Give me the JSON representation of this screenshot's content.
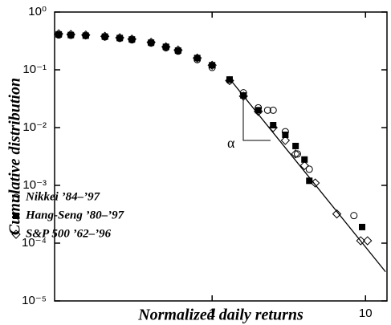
{
  "chart_data": {
    "type": "scatter",
    "log_x": true,
    "log_y": true,
    "xlabel": "Normalized daily returns",
    "ylabel": "Cumulative distribution",
    "xlim": [
      0.094,
      13.8
    ],
    "ylim": [
      1e-05,
      1
    ],
    "xticks": [
      1,
      10
    ],
    "yticks": [
      {
        "value": 1,
        "label": "10⁰"
      },
      {
        "value": 0.1,
        "label": "10⁻¹"
      },
      {
        "value": 0.01,
        "label": "10⁻²"
      },
      {
        "value": 0.001,
        "label": "10⁻³"
      },
      {
        "value": 0.0001,
        "label": "10⁻⁴"
      },
      {
        "value": 1e-05,
        "label": "10⁻⁵"
      }
    ],
    "legend": "lower left",
    "series": [
      {
        "name": "Nikkei ’84–’97",
        "marker": "circle",
        "color": "#000000",
        "x": [
          0.1,
          0.12,
          0.15,
          0.2,
          0.25,
          0.3,
          0.4,
          0.5,
          0.6,
          0.8,
          1,
          1.3,
          1.6,
          2,
          2.3,
          2.5,
          3,
          3.6,
          4.3,
          8.4
        ],
        "values": [
          0.4,
          0.395,
          0.39,
          0.37,
          0.35,
          0.33,
          0.29,
          0.24,
          0.21,
          0.15,
          0.11,
          0.065,
          0.04,
          0.022,
          0.02,
          0.02,
          0.0085,
          0.0035,
          0.0019,
          0.0003
        ]
      },
      {
        "name": "Hang-Seng ’80–’97",
        "marker": "square",
        "color": "#000000",
        "x": [
          0.1,
          0.12,
          0.15,
          0.2,
          0.25,
          0.3,
          0.4,
          0.5,
          0.6,
          0.8,
          1,
          1.3,
          1.6,
          2,
          2.5,
          3,
          3.5,
          4,
          4.3,
          9.5
        ],
        "values": [
          0.41,
          0.4,
          0.39,
          0.375,
          0.355,
          0.335,
          0.295,
          0.25,
          0.215,
          0.16,
          0.12,
          0.068,
          0.036,
          0.02,
          0.011,
          0.0075,
          0.0048,
          0.0028,
          0.0012,
          0.00019
        ]
      },
      {
        "name": "S&P 500 ’62–’96",
        "marker": "diamond",
        "color": "#000000",
        "x": [
          0.1,
          0.12,
          0.15,
          0.2,
          0.25,
          0.3,
          0.4,
          0.5,
          0.6,
          0.8,
          1,
          1.3,
          1.6,
          2,
          2.5,
          3,
          3.5,
          4,
          4.7,
          6.5,
          9.3,
          10.3
        ],
        "values": [
          0.42,
          0.41,
          0.4,
          0.38,
          0.36,
          0.34,
          0.3,
          0.25,
          0.22,
          0.16,
          0.12,
          0.065,
          0.035,
          0.019,
          0.01,
          0.006,
          0.0035,
          0.0022,
          0.0011,
          0.00032,
          0.00011,
          0.00011
        ]
      }
    ],
    "fit": {
      "x": [
        1.3,
        13.5
      ],
      "y": [
        0.07,
        3.2e-05
      ]
    },
    "annotation": "α"
  }
}
